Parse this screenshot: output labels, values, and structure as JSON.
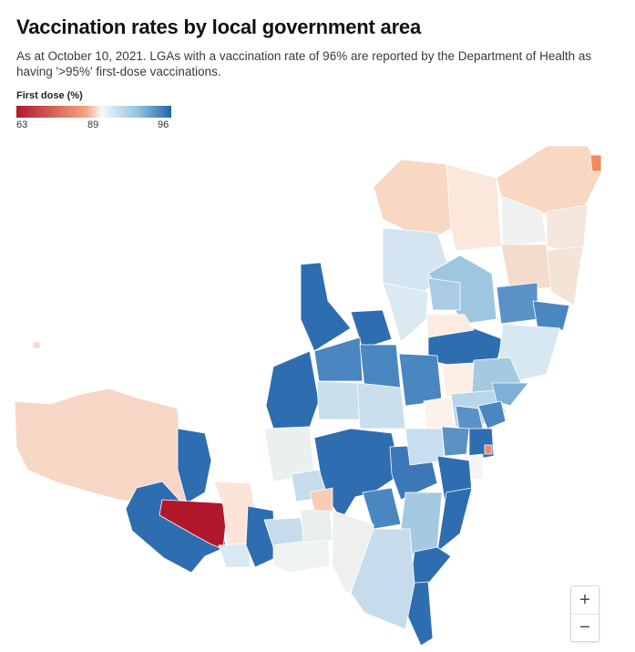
{
  "header": {
    "title": "Vaccination rates by local government area",
    "subtitle": "As at October 10, 2021. LGAs with a vaccination rate of 96% are reported by the Department of Health as having '>95%' first-dose vaccinations."
  },
  "legend": {
    "title": "First dose (%)",
    "min_label": "63",
    "mid_label": "89",
    "max_label": "96",
    "colors": [
      "#b2182b",
      "#f4a582",
      "#f7f7f7",
      "#92c5de",
      "#2166ac"
    ]
  },
  "zoom": {
    "in_label": "+",
    "out_label": "−"
  },
  "map_data": {
    "type": "choropleth",
    "value_scale": {
      "min": 63,
      "mid": 89,
      "max": 96
    },
    "regions_shown": "NSW local government areas"
  }
}
